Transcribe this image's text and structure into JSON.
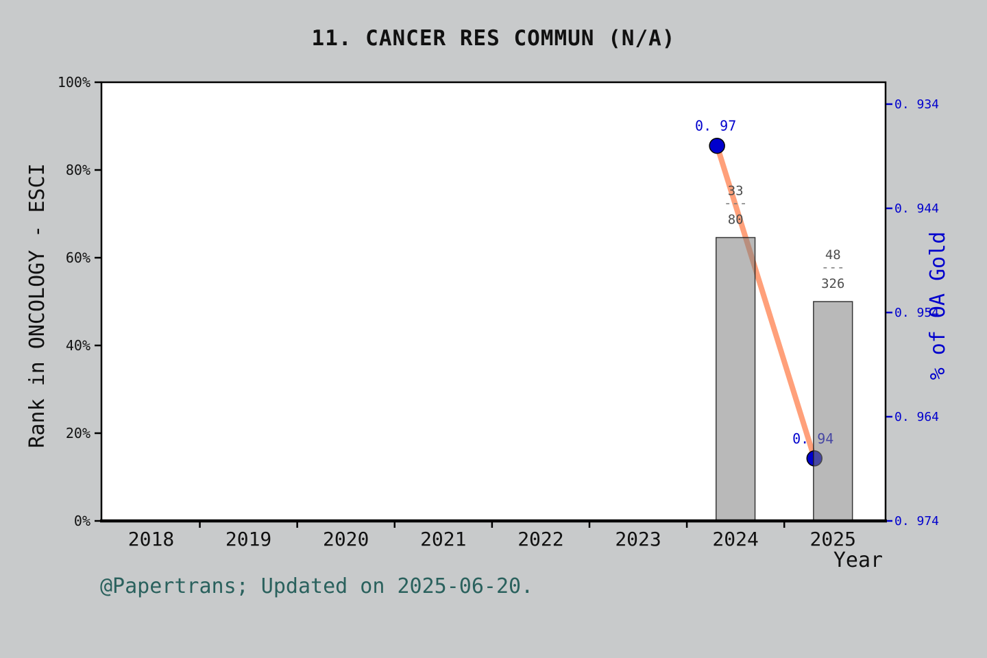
{
  "title": "11.  CANCER RES COMMUN (N/A)",
  "footer": "@Papertrans; Updated on 2025-06-20.",
  "colors": {
    "figure_background": "#c8cacb",
    "plot_background": "#ffffff",
    "bar_fill": "#808080",
    "bar_fill_opacity": 0.55,
    "bar_edge": "#1a1a1a",
    "line": "#ffa07a",
    "marker": "#0000cd",
    "right_axis_text": "#0000cd",
    "fraction_text": "#4d4d4d",
    "footer_text": "#2a615d"
  },
  "chart_data": {
    "type": "combo",
    "title": "11.  CANCER RES COMMUN (N/A)",
    "xlabel": "Year",
    "ylabel_left": "Rank in ONCOLOGY - ESCI",
    "ylabel_right": "% of OA Gold",
    "x_axis": {
      "lim": [
        2017.49,
        2025.54
      ],
      "tick_years": [
        2018,
        2019,
        2020,
        2021,
        2022,
        2023,
        2024,
        2025
      ],
      "tick_labels": [
        "2018",
        "2019",
        "2020",
        "2021",
        "2022",
        "2023",
        "2024",
        "2025"
      ],
      "minor_tick_years": [
        2018.5,
        2019.5,
        2020.5,
        2021.5,
        2022.5,
        2023.5,
        2024.5
      ]
    },
    "left_axis": {
      "lim": [
        0,
        100
      ],
      "tick_values": [
        0,
        20,
        40,
        60,
        80,
        100
      ],
      "tick_labels": [
        "0%",
        "20%",
        "40%",
        "60%",
        "80%",
        "100%"
      ]
    },
    "right_axis": {
      "lim": [
        0.934,
        0.9761
      ],
      "tick_values": [
        0.934,
        0.944,
        0.954,
        0.964,
        0.974
      ],
      "tick_labels": [
        "0. 934",
        "0. 944",
        "0. 954",
        "0. 964",
        "0. 974"
      ]
    },
    "series": [
      {
        "name": "Rank in ONCOLOGY - ESCI",
        "type": "bar",
        "value_axis": "left",
        "x": [
          2024,
          2025
        ],
        "values": [
          64.6,
          50.0
        ],
        "bar_width_years": 0.4,
        "annotations": [
          {
            "numerator": "33",
            "bar": "---",
            "denominator": "80"
          },
          {
            "numerator": "48",
            "bar": "---",
            "denominator": "326"
          }
        ]
      },
      {
        "name": "% of OA Gold",
        "type": "line",
        "value_axis": "right",
        "x": [
          2024,
          2025
        ],
        "values": [
          0.97,
          0.94
        ],
        "x_offset_years": -0.19,
        "point_labels": [
          "0. 97",
          "0. 94"
        ]
      }
    ]
  }
}
